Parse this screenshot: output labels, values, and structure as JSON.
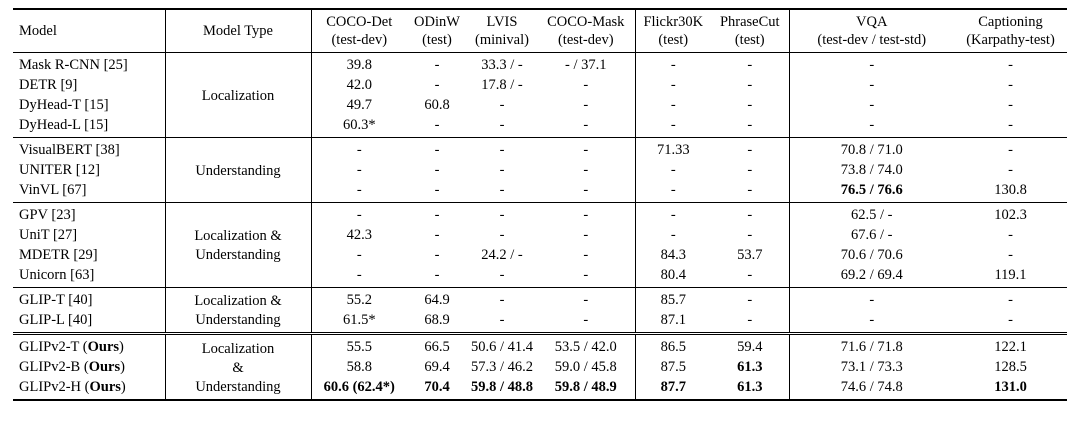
{
  "table": {
    "columns": [
      {
        "label": "Model",
        "sublabel": ""
      },
      {
        "label": "Model Type",
        "sublabel": ""
      },
      {
        "label": "COCO-Det",
        "sublabel": "(test-dev)"
      },
      {
        "label": "ODinW",
        "sublabel": "(test)"
      },
      {
        "label": "LVIS",
        "sublabel": "(minival)"
      },
      {
        "label": "COCO-Mask",
        "sublabel": "(test-dev)"
      },
      {
        "label": "Flickr30K",
        "sublabel": "(test)"
      },
      {
        "label": "PhraseCut",
        "sublabel": "(test)"
      },
      {
        "label": "VQA",
        "sublabel": "(test-dev / test-std)"
      },
      {
        "label": "Captioning",
        "sublabel": "(Karpathy-test)"
      }
    ],
    "groups": [
      {
        "model_type_lines": [
          "Localization"
        ],
        "rule": "single",
        "rows": [
          {
            "model": "Mask R-CNN [25]",
            "cells": [
              "39.8",
              "-",
              "33.3 / -",
              "- / 37.1",
              "-",
              "-",
              "-",
              "-"
            ]
          },
          {
            "model": "DETR [9]",
            "cells": [
              "42.0",
              "-",
              "17.8 / -",
              "-",
              "-",
              "-",
              "-",
              "-"
            ]
          },
          {
            "model": "DyHead-T [15]",
            "cells": [
              "49.7",
              "60.8",
              "-",
              "-",
              "-",
              "-",
              "-",
              "-"
            ]
          },
          {
            "model": "DyHead-L [15]",
            "cells": [
              "60.3*",
              "-",
              "-",
              "-",
              "-",
              "-",
              "-",
              "-"
            ]
          }
        ]
      },
      {
        "model_type_lines": [
          "Understanding"
        ],
        "rule": "single",
        "rows": [
          {
            "model": "VisualBERT [38]",
            "cells": [
              "-",
              "-",
              "-",
              "-",
              "71.33",
              "-",
              "70.8 / 71.0",
              "-"
            ]
          },
          {
            "model": "UNITER [12]",
            "cells": [
              "-",
              "-",
              "-",
              "-",
              "-",
              "-",
              "73.8 / 74.0",
              "-"
            ]
          },
          {
            "model": "VinVL [67]",
            "cells": [
              "-",
              "-",
              "-",
              "-",
              "-",
              "-",
              "**76.5 / 76.6**",
              "130.8"
            ]
          }
        ]
      },
      {
        "model_type_lines": [
          "Localization &",
          "Understanding"
        ],
        "rule": "single",
        "rows": [
          {
            "model": "GPV [23]",
            "cells": [
              "-",
              "-",
              "-",
              "-",
              "-",
              "-",
              "62.5 / -",
              "102.3"
            ]
          },
          {
            "model": "UniT [27]",
            "cells": [
              "42.3",
              "-",
              "-",
              "-",
              "-",
              "-",
              "67.6 / -",
              "-"
            ]
          },
          {
            "model": "MDETR [29]",
            "cells": [
              "-",
              "-",
              "24.2 / -",
              "-",
              "84.3",
              "53.7",
              "70.6 / 70.6",
              "-"
            ]
          },
          {
            "model": "Unicorn [63]",
            "cells": [
              "-",
              "-",
              "-",
              "-",
              "80.4",
              "-",
              "69.2 / 69.4",
              "119.1"
            ]
          }
        ]
      },
      {
        "model_type_lines": [
          "Localization &",
          "Understanding"
        ],
        "rule": "single",
        "rows": [
          {
            "model": "GLIP-T [40]",
            "cells": [
              "55.2",
              "64.9",
              "-",
              "-",
              "85.7",
              "-",
              "-",
              "-"
            ]
          },
          {
            "model": "GLIP-L [40]",
            "cells": [
              "61.5*",
              "68.9",
              "-",
              "-",
              "87.1",
              "-",
              "-",
              "-"
            ]
          }
        ]
      },
      {
        "model_type_lines": [
          "Localization",
          "&",
          "Understanding"
        ],
        "rule": "double",
        "rows": [
          {
            "model": "GLIPv2-T (**Ours**)",
            "cells": [
              "55.5",
              "66.5",
              "50.6 / 41.4",
              "53.5 / 42.0",
              "86.5",
              "59.4",
              "71.6 / 71.8",
              "122.1"
            ]
          },
          {
            "model": "GLIPv2-B (**Ours**)",
            "cells": [
              "58.8",
              "69.4",
              "57.3 / 46.2",
              "59.0 / 45.8",
              "87.5",
              "**61.3**",
              "73.1 / 73.3",
              "128.5"
            ]
          },
          {
            "model": "GLIPv2-H (**Ours**)",
            "cells": [
              "**60.6 (62.4*)**",
              "**70.4**",
              "**59.8 / 48.8**",
              "**59.8 / 48.9**",
              "**87.7**",
              "**61.3**",
              "74.6 / 74.8",
              "**131.0**"
            ]
          }
        ]
      }
    ]
  }
}
